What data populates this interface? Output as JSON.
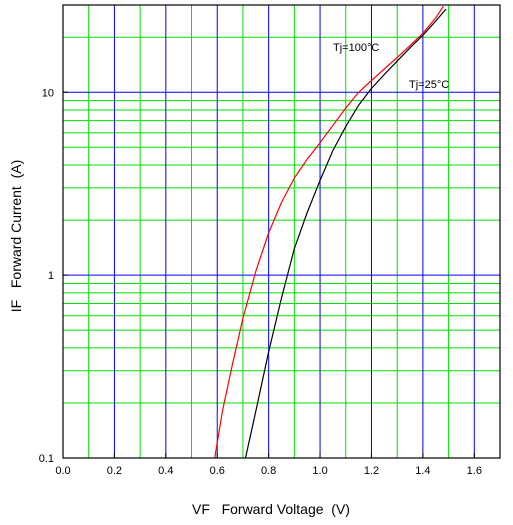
{
  "chart_data": {
    "type": "line",
    "xlabel": "VF   Forward Voltage  (V)",
    "ylabel": "IF   Forward Current  (A)",
    "xlim": [
      0.0,
      1.7
    ],
    "ylim": [
      0.1,
      30
    ],
    "y_scale": "log",
    "grid": true,
    "x_major_ticks": [
      0.0,
      0.2,
      0.4,
      0.6,
      0.8,
      1.0,
      1.2,
      1.4,
      1.6
    ],
    "x_tick_labels": [
      "0.0",
      "0.2",
      "0.4",
      "0.6",
      "0.8",
      "1.0",
      "1.2",
      "1.4",
      "1.6"
    ],
    "y_major_ticks": [
      0.1,
      1,
      10
    ],
    "y_tick_labels": [
      "0.1",
      "1",
      "10"
    ],
    "colors": {
      "major_grid": "#0000ff",
      "minor_grid": "#00e000",
      "series_25": "#000000",
      "series_100": "#ff0000"
    },
    "series": [
      {
        "name": "Tj=25°C",
        "color": "#000000",
        "x": [
          0.71,
          0.75,
          0.8,
          0.85,
          0.9,
          0.95,
          1.0,
          1.05,
          1.1,
          1.15,
          1.2,
          1.25,
          1.3,
          1.35,
          1.4,
          1.45,
          1.49
        ],
        "y": [
          0.1,
          0.18,
          0.38,
          0.75,
          1.4,
          2.2,
          3.3,
          4.8,
          6.5,
          8.5,
          10.5,
          12.5,
          14.8,
          17.5,
          20.5,
          24.5,
          28.5
        ]
      },
      {
        "name": "Tj=100°C",
        "color": "#ff0000",
        "x": [
          0.59,
          0.62,
          0.66,
          0.7,
          0.75,
          0.8,
          0.85,
          0.9,
          0.95,
          1.0,
          1.05,
          1.1,
          1.15,
          1.2,
          1.25,
          1.3,
          1.35,
          1.4,
          1.45,
          1.48
        ],
        "y": [
          0.1,
          0.18,
          0.33,
          0.58,
          1.05,
          1.7,
          2.5,
          3.4,
          4.3,
          5.3,
          6.6,
          8.2,
          10.0,
          11.6,
          13.4,
          15.5,
          18.0,
          21.0,
          25.5,
          29.5
        ]
      }
    ],
    "annotations": [
      "Tj=100°C",
      "Tj=25°C"
    ]
  }
}
